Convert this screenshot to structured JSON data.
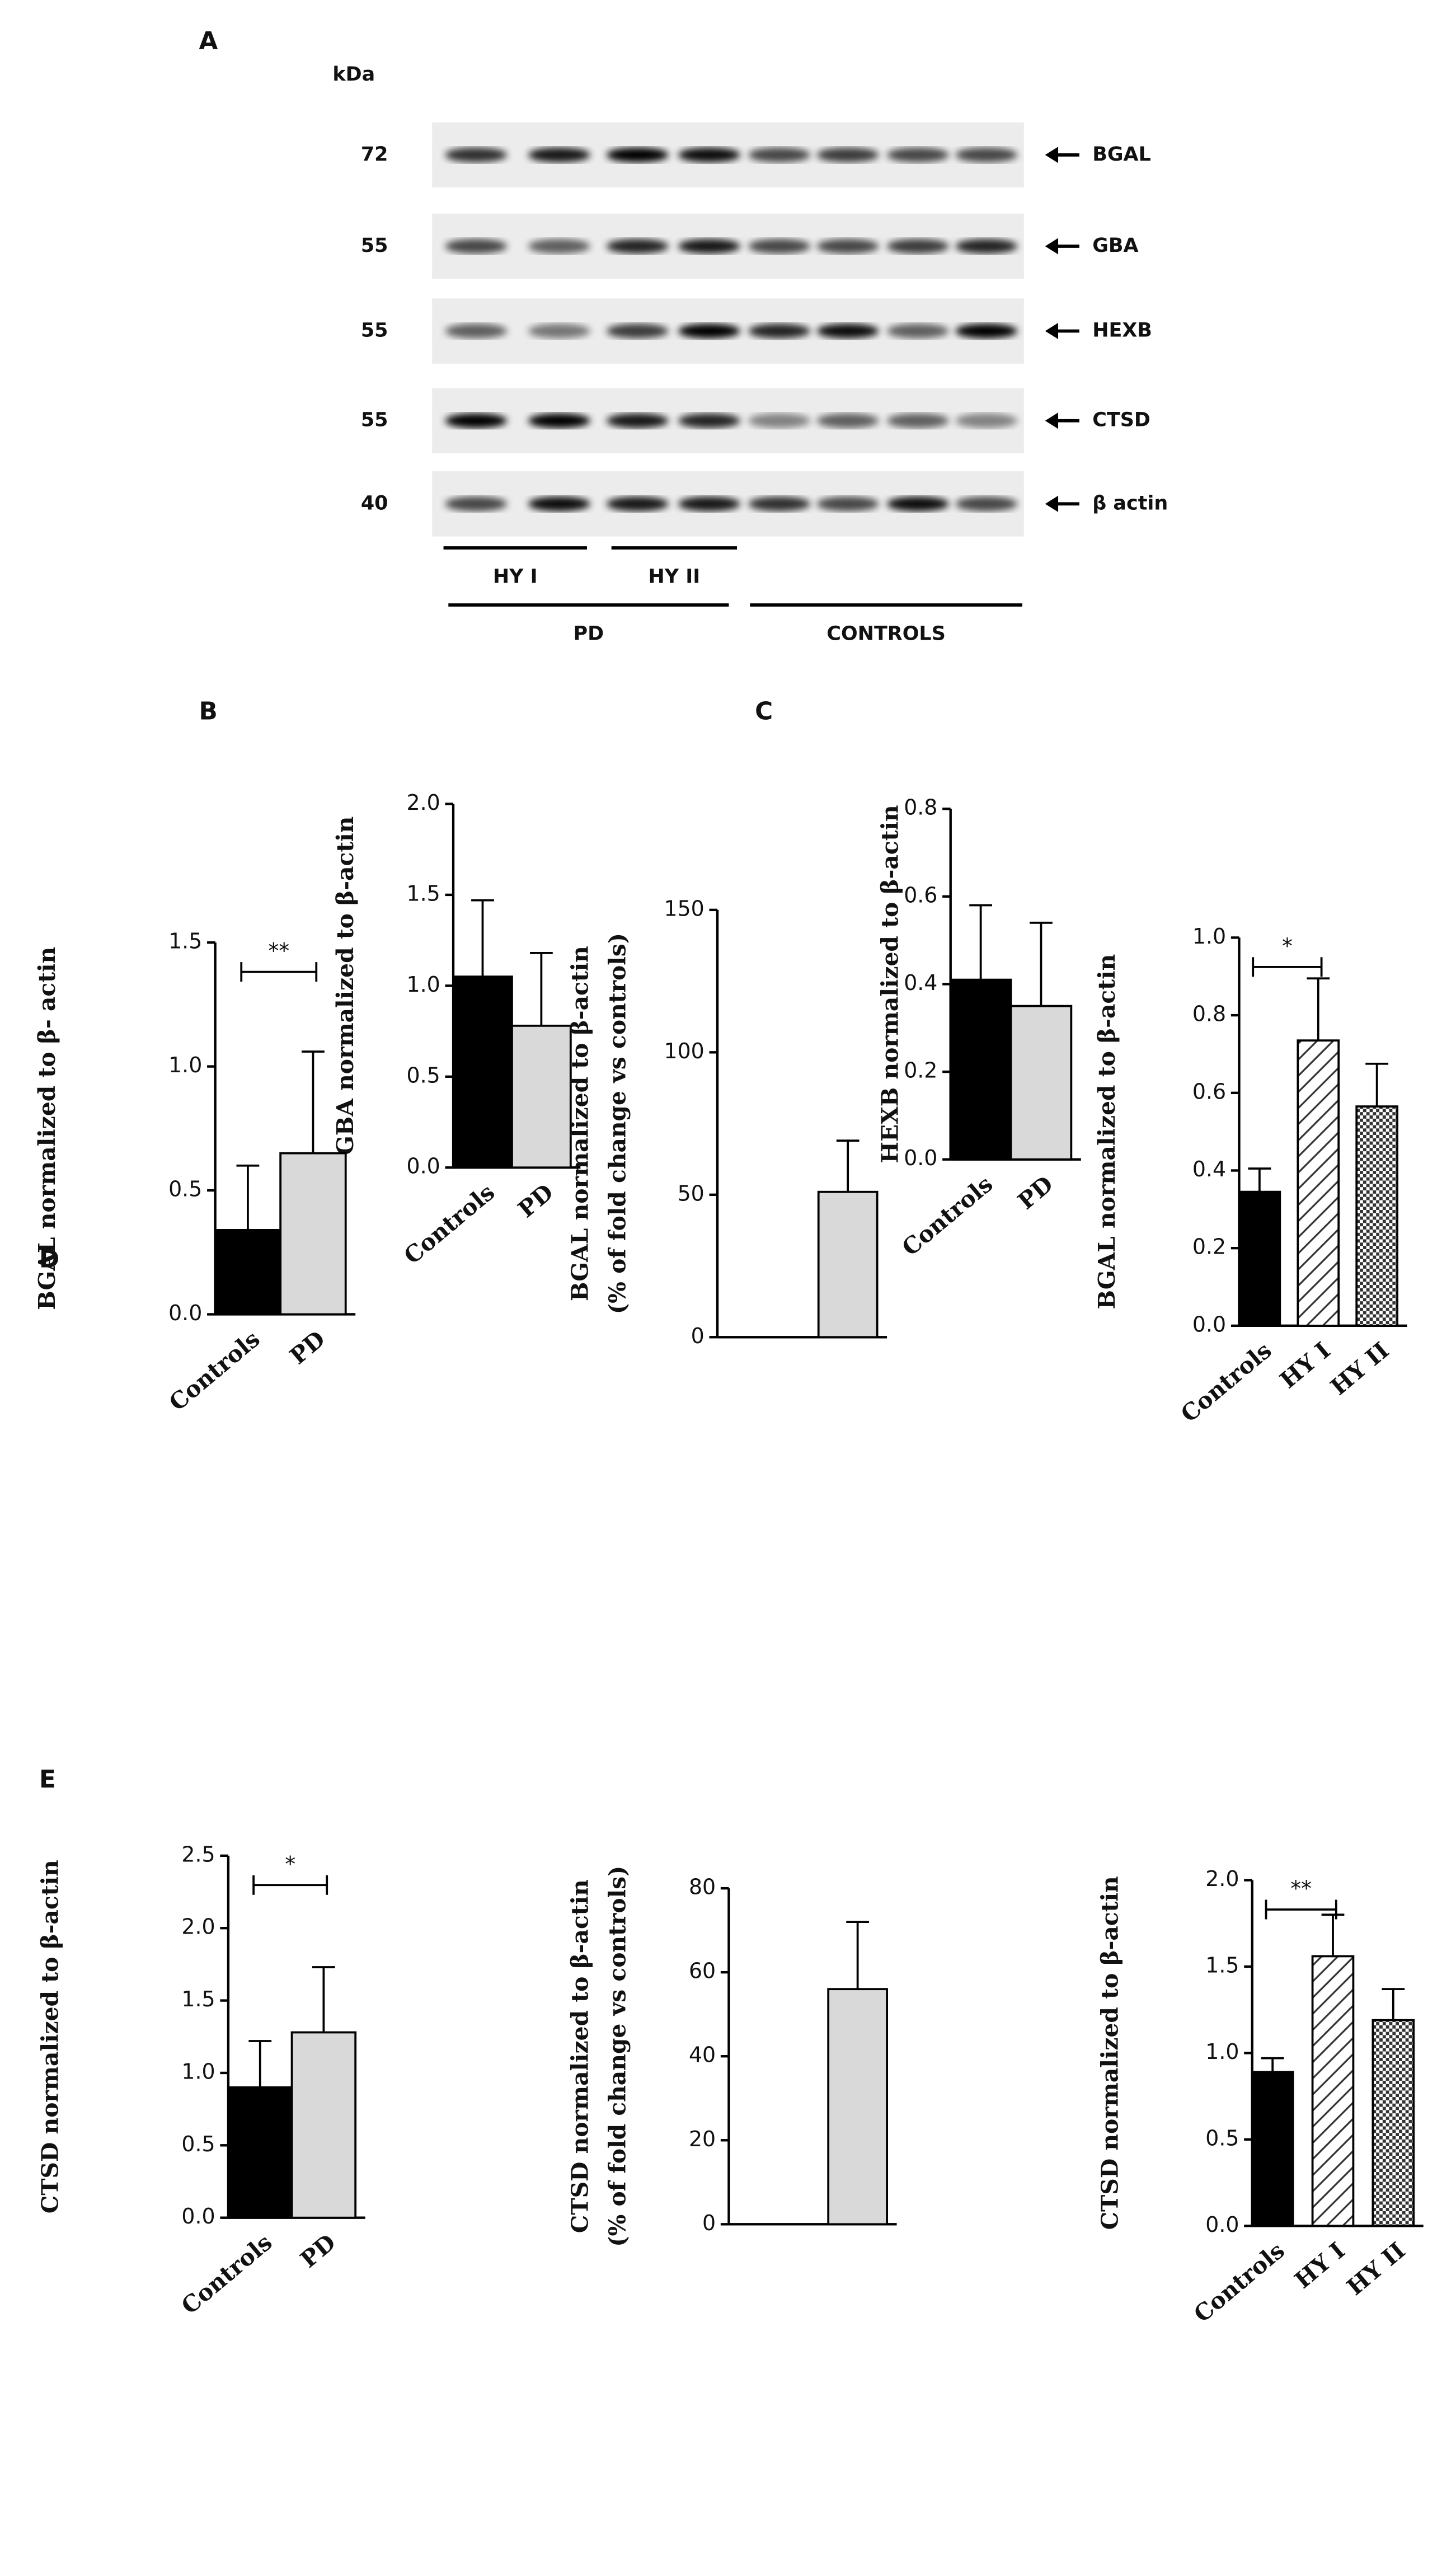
{
  "panels": [
    "A",
    "B",
    "C",
    "D",
    "E"
  ],
  "blot": {
    "unit": "kDa",
    "rows": [
      {
        "kda": "72",
        "label": "BGAL"
      },
      {
        "kda": "55",
        "label": "GBA"
      },
      {
        "kda": "55",
        "label": "HEXB"
      },
      {
        "kda": "55",
        "label": "CTSD"
      },
      {
        "kda": "40",
        "label": "β actin"
      }
    ],
    "groups": [
      "HY I",
      "HY II",
      "PD",
      "CONTROLS"
    ]
  },
  "chart_data": [
    {
      "type": "bar",
      "ylabel": [
        "GBA  normalized to β-actin"
      ],
      "categories": [
        "Controls",
        "PD"
      ],
      "values": [
        1.05,
        0.78
      ],
      "errors": [
        0.42,
        0.4
      ],
      "colors": [
        "#000000",
        "#d9d9d9"
      ],
      "patterns": [
        "solid",
        "solid"
      ],
      "ylim": [
        0,
        2
      ],
      "yticks": [
        {
          "value": 0,
          "label": "0.0"
        },
        {
          "value": 0.5,
          "label": "0.5"
        },
        {
          "value": 1,
          "label": "1.0"
        },
        {
          "value": 1.5,
          "label": "1.5"
        },
        {
          "value": 2,
          "label": "2.0"
        }
      ]
    },
    {
      "type": "bar",
      "ylabel": [
        "HEXB normalized to β-actin"
      ],
      "categories": [
        "Controls",
        "PD"
      ],
      "values": [
        0.41,
        0.35
      ],
      "errors": [
        0.17,
        0.19
      ],
      "colors": [
        "#000000",
        "#d9d9d9"
      ],
      "patterns": [
        "solid",
        "solid"
      ],
      "ylim": [
        0,
        0.8
      ],
      "yticks": [
        {
          "value": 0,
          "label": "0.0"
        },
        0.2,
        0.4,
        0.6,
        0.8
      ]
    },
    {
      "type": "bar",
      "ylabel": [
        "BGAL normalized to β- actin"
      ],
      "categories": [
        "Controls",
        "PD"
      ],
      "values": [
        0.34,
        0.65
      ],
      "errors": [
        0.26,
        0.41
      ],
      "colors": [
        "#000000",
        "#d9d9d9"
      ],
      "patterns": [
        "solid",
        "solid"
      ],
      "ylim": [
        0,
        1.5
      ],
      "yticks": [
        {
          "value": 0,
          "label": "0.0"
        },
        0.5,
        {
          "value": 1,
          "label": "1.0"
        },
        1.5
      ],
      "annotation": "**"
    },
    {
      "type": "bar",
      "ylabel": [
        "BGAL normalized to β-actin",
        "(% of fold change vs controls)"
      ],
      "categories": [
        null,
        null
      ],
      "values": [
        null,
        51
      ],
      "errors": [
        null,
        18
      ],
      "colors": [
        "#000000",
        "#d9d9d9"
      ],
      "patterns": [
        "solid",
        "solid"
      ],
      "ylim": [
        0,
        150
      ],
      "yticks": [
        0,
        50,
        100,
        150
      ]
    },
    {
      "type": "bar",
      "ylabel": [
        "BGAL normalized to β-actin"
      ],
      "categories": [
        "Controls",
        "HY I",
        "HY II"
      ],
      "values": [
        0.345,
        0.735,
        0.565
      ],
      "errors": [
        0.06,
        0.16,
        0.11
      ],
      "colors": [
        "#000000",
        "#ffffff",
        "#ffffff"
      ],
      "patterns": [
        "solid",
        "hatch",
        "checker"
      ],
      "ylim": [
        0,
        1
      ],
      "yticks": [
        {
          "value": 0,
          "label": "0.0"
        },
        0.2,
        0.4,
        0.6,
        0.8,
        {
          "value": 1,
          "label": "1.0"
        }
      ],
      "annotation": "*"
    },
    {
      "type": "bar",
      "ylabel": [
        "CTSD normalized to β-actin"
      ],
      "categories": [
        "Controls",
        "PD"
      ],
      "values": [
        0.9,
        1.28
      ],
      "errors": [
        0.32,
        0.45
      ],
      "colors": [
        "#000000",
        "#d9d9d9"
      ],
      "patterns": [
        "solid",
        "solid"
      ],
      "ylim": [
        0,
        2.5
      ],
      "yticks": [
        {
          "value": 0,
          "label": "0.0"
        },
        0.5,
        {
          "value": 1,
          "label": "1.0"
        },
        1.5,
        {
          "value": 2,
          "label": "2.0"
        },
        2.5
      ],
      "annotation": "*"
    },
    {
      "type": "bar",
      "ylabel": [
        "CTSD normalized to β-actin",
        "(% of fold change vs controls)"
      ],
      "categories": [
        null,
        null
      ],
      "values": [
        null,
        56
      ],
      "errors": [
        null,
        16
      ],
      "colors": [
        "#000000",
        "#d9d9d9"
      ],
      "patterns": [
        "solid",
        "solid"
      ],
      "ylim": [
        0,
        80
      ],
      "yticks": [
        0,
        20,
        40,
        60,
        80
      ]
    },
    {
      "type": "bar",
      "ylabel": [
        "CTSD normalized to β-actin"
      ],
      "categories": [
        "Controls",
        "HY I",
        "HY II"
      ],
      "values": [
        0.89,
        1.56,
        1.19
      ],
      "errors": [
        0.08,
        0.24,
        0.18
      ],
      "colors": [
        "#000000",
        "#ffffff",
        "#ffffff"
      ],
      "patterns": [
        "solid",
        "hatch",
        "checker"
      ],
      "ylim": [
        0,
        2
      ],
      "yticks": [
        {
          "value": 0,
          "label": "0.0"
        },
        0.5,
        {
          "value": 1,
          "label": "1.0"
        },
        1.5,
        {
          "value": 2,
          "label": "2.0"
        }
      ],
      "annotation": "**"
    }
  ]
}
